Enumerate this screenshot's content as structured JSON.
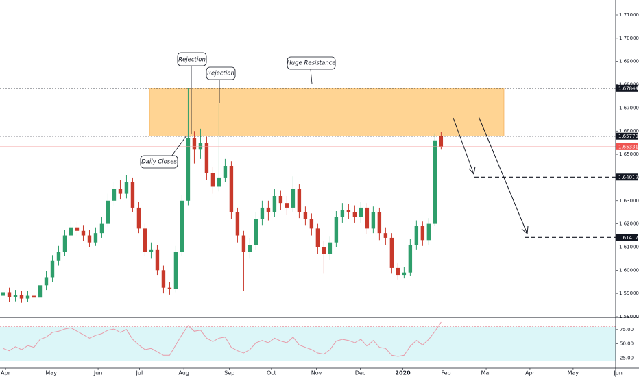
{
  "chart_data": [
    {
      "type": "candlestick",
      "open": [
        1.589,
        1.5905,
        1.5885,
        1.5892,
        1.5878,
        1.589,
        1.5882,
        1.5935,
        1.597,
        1.604,
        1.608,
        1.615,
        1.6185,
        1.617,
        1.615,
        1.612,
        1.616,
        1.62,
        1.63,
        1.635,
        1.633,
        1.638,
        1.627,
        1.618,
        1.608,
        1.609,
        1.6,
        1.5925,
        1.592,
        1.608,
        1.63,
        1.657,
        1.652,
        1.655,
        1.642,
        1.636,
        1.64,
        1.645,
        1.625,
        1.615,
        1.608,
        1.611,
        1.622,
        1.627,
        1.625,
        1.632,
        1.629,
        1.627,
        1.635,
        1.625,
        1.622,
        1.618,
        1.61,
        1.607,
        1.612,
        1.623,
        1.626,
        1.625,
        1.623,
        1.627,
        1.618,
        1.625,
        1.616,
        1.614,
        1.601,
        1.598,
        1.599,
        1.611,
        1.619,
        1.613,
        1.62,
        1.6578
      ],
      "high": [
        1.593,
        1.5925,
        1.5915,
        1.591,
        1.5912,
        1.5908,
        1.5955,
        1.5995,
        1.6065,
        1.6105,
        1.6175,
        1.6215,
        1.621,
        1.6195,
        1.6175,
        1.6185,
        1.623,
        1.633,
        1.638,
        1.639,
        1.641,
        1.64,
        1.6295,
        1.62,
        1.612,
        1.611,
        1.602,
        1.595,
        1.6105,
        1.6325,
        1.6784,
        1.66,
        1.661,
        1.6575,
        1.6445,
        1.672,
        1.648,
        1.647,
        1.627,
        1.617,
        1.614,
        1.625,
        1.63,
        1.63,
        1.635,
        1.6345,
        1.632,
        1.6405,
        1.637,
        1.6275,
        1.6245,
        1.62,
        1.6125,
        1.6145,
        1.6255,
        1.629,
        1.6285,
        1.628,
        1.6295,
        1.629,
        1.6275,
        1.627,
        1.6185,
        1.616,
        1.603,
        1.6015,
        1.6135,
        1.6215,
        1.621,
        1.6225,
        1.659,
        1.6595
      ],
      "low": [
        1.5868,
        1.5865,
        1.5866,
        1.586,
        1.5862,
        1.586,
        1.587,
        1.5915,
        1.595,
        1.602,
        1.606,
        1.613,
        1.6145,
        1.6125,
        1.61,
        1.6105,
        1.614,
        1.6185,
        1.628,
        1.6305,
        1.631,
        1.625,
        1.616,
        1.606,
        1.605,
        1.598,
        1.59,
        1.5895,
        1.5905,
        1.606,
        1.628,
        1.646,
        1.648,
        1.639,
        1.633,
        1.634,
        1.638,
        1.622,
        1.612,
        1.591,
        1.605,
        1.609,
        1.6195,
        1.6215,
        1.623,
        1.626,
        1.624,
        1.625,
        1.6225,
        1.6195,
        1.615,
        1.607,
        1.5985,
        1.6045,
        1.61,
        1.6205,
        1.622,
        1.6205,
        1.6205,
        1.6155,
        1.616,
        1.613,
        1.611,
        1.5985,
        1.596,
        1.5965,
        1.5975,
        1.609,
        1.6105,
        1.611,
        1.619,
        1.652
      ],
      "close": [
        1.5905,
        1.5885,
        1.5892,
        1.5878,
        1.589,
        1.5882,
        1.5935,
        1.597,
        1.604,
        1.608,
        1.615,
        1.6185,
        1.617,
        1.615,
        1.612,
        1.616,
        1.62,
        1.63,
        1.635,
        1.633,
        1.638,
        1.627,
        1.618,
        1.608,
        1.609,
        1.6,
        1.5925,
        1.592,
        1.608,
        1.63,
        1.657,
        1.652,
        1.655,
        1.642,
        1.636,
        1.64,
        1.645,
        1.625,
        1.615,
        1.608,
        1.611,
        1.622,
        1.627,
        1.625,
        1.632,
        1.629,
        1.627,
        1.635,
        1.625,
        1.622,
        1.618,
        1.61,
        1.607,
        1.612,
        1.623,
        1.626,
        1.625,
        1.623,
        1.627,
        1.618,
        1.625,
        1.616,
        1.614,
        1.601,
        1.598,
        1.599,
        1.611,
        1.619,
        1.613,
        1.62,
        1.656,
        1.6533
      ],
      "up_color": "#2e9e6b",
      "down_color": "#c8392b",
      "ylim": [
        1.58,
        1.71
      ],
      "yticks": [
        {
          "value": 1.58,
          "label": "1.58000"
        },
        {
          "value": 1.59,
          "label": "1.59000"
        },
        {
          "value": 1.6,
          "label": "1.60000"
        },
        {
          "value": 1.61,
          "label": "1.61000"
        },
        {
          "value": 1.62,
          "label": "1.62000"
        },
        {
          "value": 1.63,
          "label": "1.63000"
        },
        {
          "value": 1.64,
          "label": "1.64000"
        },
        {
          "value": 1.65,
          "label": "1.65000"
        },
        {
          "value": 1.66,
          "label": "1.66000"
        },
        {
          "value": 1.67,
          "label": "1.67000"
        },
        {
          "value": 1.68,
          "label": "1.68000"
        },
        {
          "value": 1.69,
          "label": "1.69000"
        },
        {
          "value": 1.7,
          "label": "1.70000"
        },
        {
          "value": 1.71,
          "label": "1.71000"
        }
      ],
      "xlim": [
        -0.5,
        99.3
      ],
      "xticks": [
        {
          "value": 0.4,
          "label": "Apr"
        },
        {
          "value": 7.8,
          "label": "May"
        },
        {
          "value": 15.4,
          "label": "Jun"
        },
        {
          "value": 22.1,
          "label": "Jul"
        },
        {
          "value": 29.3,
          "label": "Aug"
        },
        {
          "value": 36.7,
          "label": "Sep"
        },
        {
          "value": 43.5,
          "label": "Oct"
        },
        {
          "value": 50.8,
          "label": "Nov"
        },
        {
          "value": 57.9,
          "label": "Dec"
        },
        {
          "value": 64.8,
          "label": "2020"
        },
        {
          "value": 71.8,
          "label": "Feb"
        },
        {
          "value": 78.3,
          "label": "Mar"
        },
        {
          "value": 85.4,
          "label": "Apr"
        },
        {
          "value": 92.4,
          "label": "May"
        },
        {
          "value": 99.7,
          "label": "Jun"
        }
      ],
      "horizontal_lines": [
        {
          "value": 1.67844,
          "style": "dotted",
          "color": "#131722",
          "tag_color": "#131722"
        },
        {
          "value": 1.65779,
          "style": "dotted",
          "color": "#131722",
          "tag_color": "#131722"
        },
        {
          "value": 1.65331,
          "style": "solid",
          "color": "#f4a3a3",
          "tag_color": "#ef5350"
        },
        {
          "value": 1.64019,
          "style": "dashed",
          "color": "#131722",
          "tag_color": "#131722"
        },
        {
          "value": 1.61417,
          "style": "dashed",
          "color": "#131722",
          "tag_color": "#131722"
        }
      ],
      "zone_color": "#ffcc80",
      "annotations": [
        "Rejection",
        "Rejection",
        "Huge Resistance",
        "Daily Closes"
      ]
    },
    {
      "type": "line",
      "values": [
        42,
        38,
        45,
        40,
        47,
        44,
        58,
        62,
        70,
        72,
        76,
        78,
        72,
        66,
        60,
        65,
        68,
        74,
        76,
        70,
        75,
        58,
        48,
        40,
        42,
        36,
        30,
        30,
        48,
        66,
        82,
        72,
        74,
        60,
        54,
        60,
        62,
        44,
        38,
        34,
        40,
        52,
        56,
        52,
        60,
        55,
        52,
        62,
        48,
        44,
        40,
        34,
        32,
        40,
        55,
        58,
        56,
        52,
        58,
        46,
        56,
        44,
        42,
        30,
        28,
        30,
        46,
        56,
        48,
        58,
        72,
        88
      ],
      "color": "#e89aa8",
      "ylim": [
        10,
        94
      ],
      "yticks": [
        {
          "value": 25,
          "label": "25.00"
        },
        {
          "value": 50,
          "label": "50.00"
        },
        {
          "value": 75,
          "label": "75.00"
        }
      ],
      "band": [
        20,
        80
      ],
      "band_color": "#dcf6f8"
    }
  ]
}
